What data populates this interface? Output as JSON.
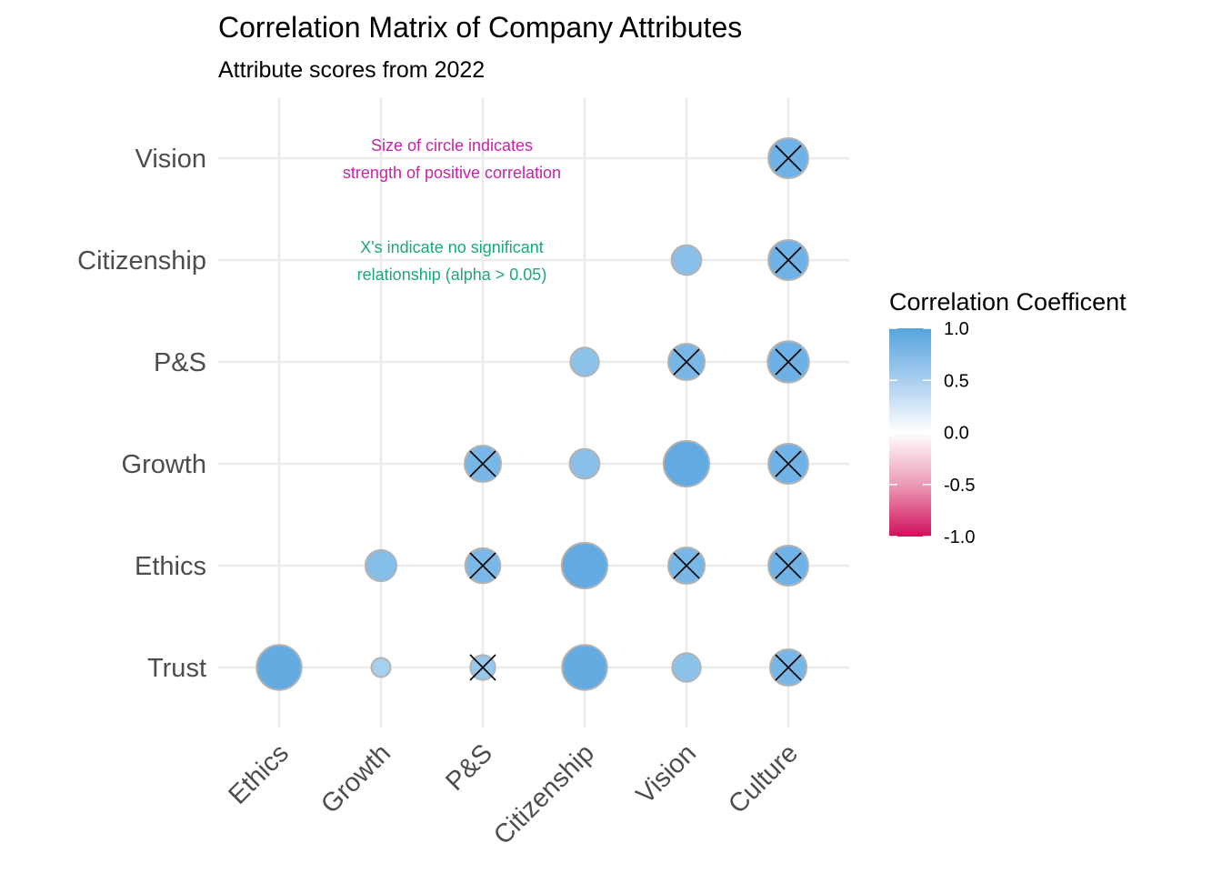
{
  "chart_data": {
    "type": "scatter",
    "title": "Correlation Matrix of Company Attributes",
    "subtitle": "Attribute scores from 2022",
    "x_categories": [
      "Ethics",
      "Growth",
      "P&S",
      "Citizenship",
      "Vision",
      "Culture"
    ],
    "y_categories": [
      "Trust",
      "Ethics",
      "Growth",
      "P&S",
      "Citizenship",
      "Vision"
    ],
    "points": [
      {
        "x": "Ethics",
        "y": "Trust",
        "r": 0.92,
        "not_significant": false
      },
      {
        "x": "Growth",
        "y": "Trust",
        "r": 0.52,
        "not_significant": false
      },
      {
        "x": "P&S",
        "y": "Trust",
        "r": 0.62,
        "not_significant": true
      },
      {
        "x": "Citizenship",
        "y": "Trust",
        "r": 0.92,
        "not_significant": false
      },
      {
        "x": "Vision",
        "y": "Trust",
        "r": 0.68,
        "not_significant": false
      },
      {
        "x": "Culture",
        "y": "Trust",
        "r": 0.8,
        "not_significant": true
      },
      {
        "x": "Growth",
        "y": "Ethics",
        "r": 0.72,
        "not_significant": false
      },
      {
        "x": "P&S",
        "y": "Ethics",
        "r": 0.78,
        "not_significant": true
      },
      {
        "x": "Citizenship",
        "y": "Ethics",
        "r": 0.93,
        "not_significant": false
      },
      {
        "x": "Vision",
        "y": "Ethics",
        "r": 0.8,
        "not_significant": true
      },
      {
        "x": "Culture",
        "y": "Ethics",
        "r": 0.85,
        "not_significant": true
      },
      {
        "x": "P&S",
        "y": "Growth",
        "r": 0.8,
        "not_significant": true
      },
      {
        "x": "Citizenship",
        "y": "Growth",
        "r": 0.7,
        "not_significant": false
      },
      {
        "x": "Vision",
        "y": "Growth",
        "r": 0.93,
        "not_significant": false
      },
      {
        "x": "Culture",
        "y": "Growth",
        "r": 0.85,
        "not_significant": true
      },
      {
        "x": "Citizenship",
        "y": "P&S",
        "r": 0.68,
        "not_significant": false
      },
      {
        "x": "Vision",
        "y": "P&S",
        "r": 0.8,
        "not_significant": true
      },
      {
        "x": "Culture",
        "y": "P&S",
        "r": 0.87,
        "not_significant": true
      },
      {
        "x": "Vision",
        "y": "Citizenship",
        "r": 0.7,
        "not_significant": false
      },
      {
        "x": "Culture",
        "y": "Citizenship",
        "r": 0.85,
        "not_significant": true
      },
      {
        "x": "Culture",
        "y": "Vision",
        "r": 0.85,
        "not_significant": true
      }
    ],
    "annotations": [
      {
        "lines": [
          "Size of circle indicates",
          "strength of positive correlation"
        ],
        "color": "#c026a6"
      },
      {
        "lines": [
          "X's indicate no significant",
          "relationship (alpha > 0.05)"
        ],
        "color": "#1aa87a"
      }
    ],
    "legend": {
      "title": "Correlation Coefficent",
      "position": "right",
      "ticks": [
        "1.0",
        "0.5",
        "0.0",
        "-0.5",
        "-1.0"
      ],
      "tick_values": [
        1.0,
        0.5,
        0.0,
        -0.5,
        -1.0
      ],
      "colors": {
        "high": "#56a4e0",
        "mid": "#ffffff",
        "low": "#d0105c"
      }
    },
    "grid": true
  }
}
